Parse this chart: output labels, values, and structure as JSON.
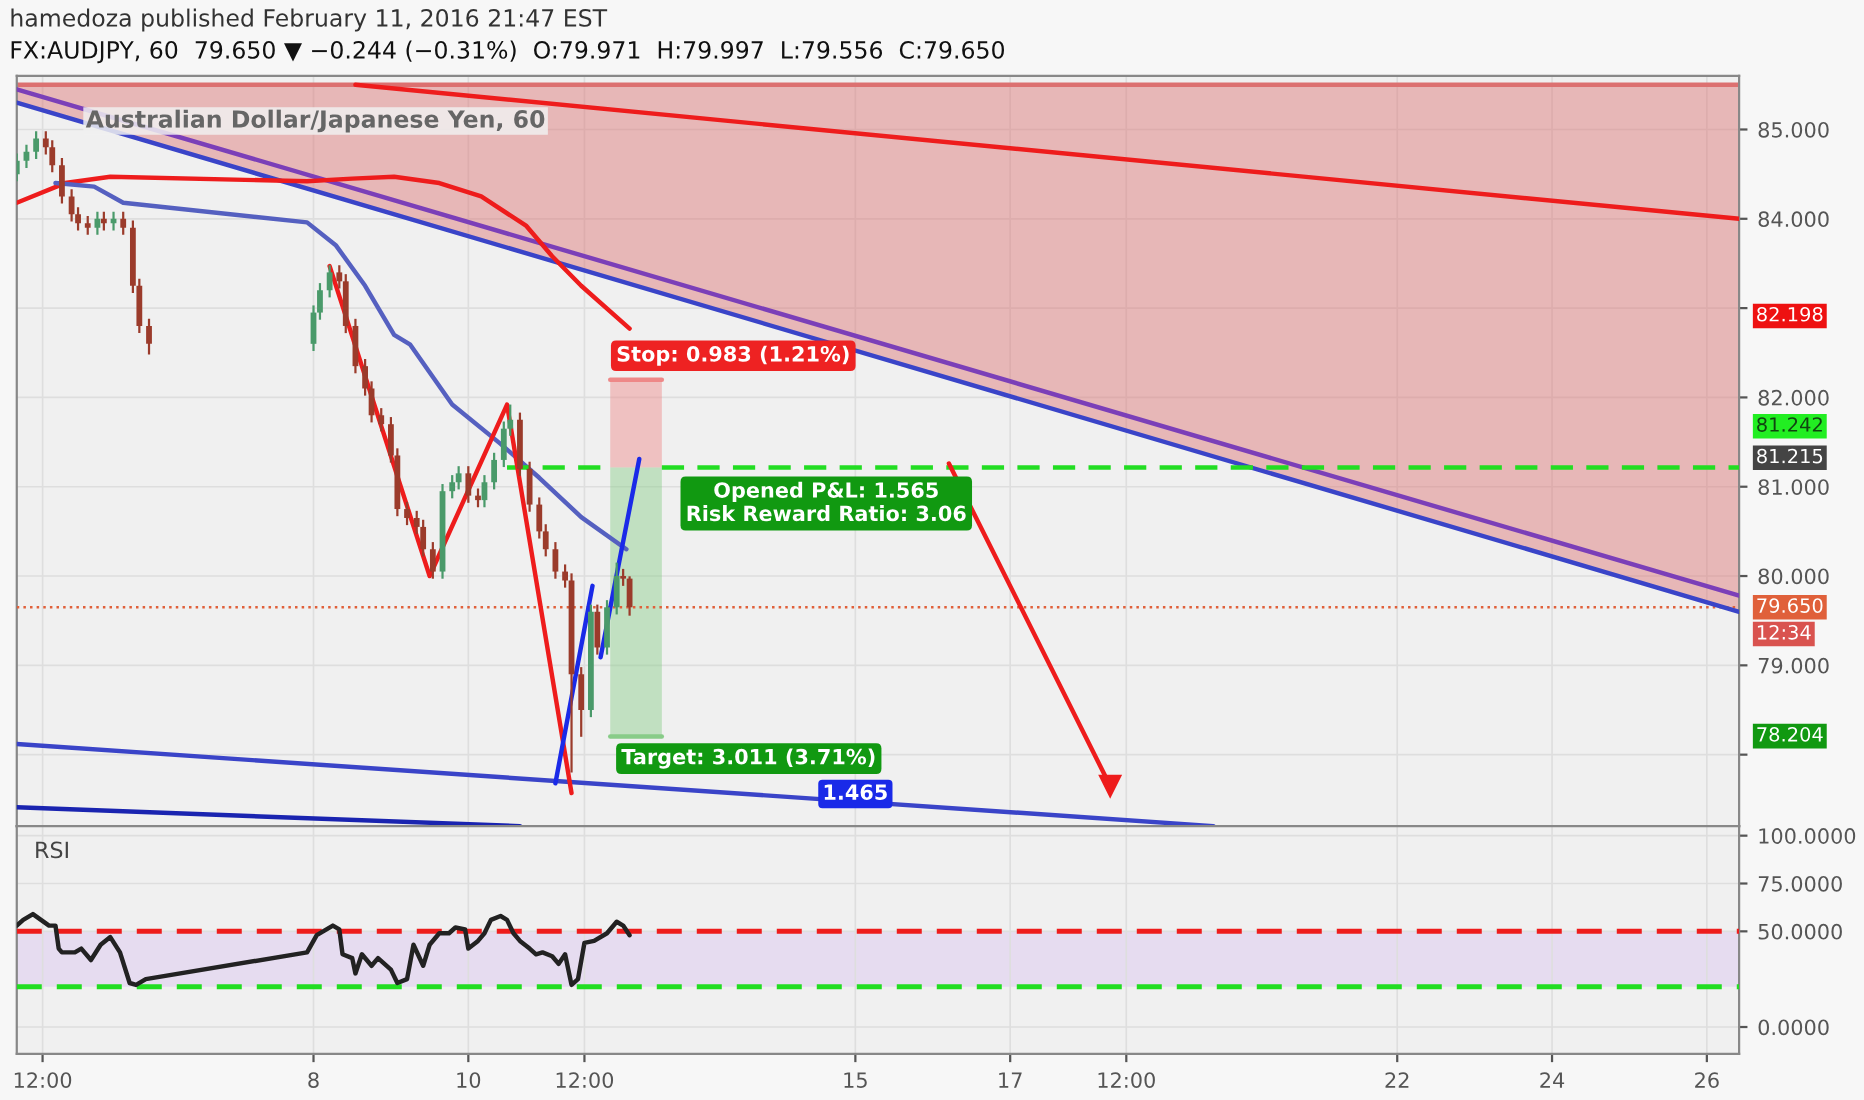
{
  "chart_data": [
    {
      "type": "candlestick",
      "subtitle": "hamedoza published February 11, 2016 21:47 EST",
      "title": "FX:AUDJPY, 60  79.650 ▼ −0.244 (−0.31%)  O:79.971  H:79.997  L:79.556  C:79.650",
      "xlim": [
        "2016-02-04T04:00",
        "2016-02-26T10:00"
      ],
      "ylim": [
        77.2,
        85.6
      ],
      "xticks": [
        {
          "value": "2016-02-04T12:00",
          "label": null
        },
        {
          "value": "2016-02-08",
          "label": null
        },
        {
          "value": "2016-02-10",
          "label": null
        },
        {
          "value": "2016-02-11T12:00",
          "label": null
        },
        {
          "value": "2016-02-15",
          "label": null
        },
        {
          "value": "2016-02-17",
          "label": null
        },
        {
          "value": "2016-02-18T12:00",
          "label": null
        },
        {
          "value": "2016-02-22",
          "label": null
        },
        {
          "value": "2016-02-24",
          "label": null
        },
        {
          "value": "2016-02-26",
          "label": null
        }
      ],
      "yticks": [
        {
          "value": 78,
          "label": null
        },
        {
          "value": 79,
          "label": "79.000"
        },
        {
          "value": 80,
          "label": "80.000"
        },
        {
          "value": 81,
          "label": "81.000"
        },
        {
          "value": 82,
          "label": "82.000"
        },
        {
          "value": 83,
          "label": null
        },
        {
          "value": 84,
          "label": "84.000"
        },
        {
          "value": 85,
          "label": "85.000"
        }
      ],
      "tick_labels": "y",
      "grid": true,
      "series": [
        {
          "type": "line",
          "color": "#dc7070",
          "x": [
            "2016-02-04T04:00",
            "2016-02-26T10:00"
          ],
          "values": [
            85.5,
            85.5
          ],
          "lower": [
            85.3,
            79.6
          ],
          "upper": [
            85.5,
            85.5
          ]
        },
        {
          "type": "line",
          "color": "#ee8888",
          "x": [
            "2016-02-11T20:00",
            "2016-02-12T12:00"
          ],
          "values": [
            82.198,
            82.198
          ],
          "lower": [
            81.215,
            81.215
          ],
          "upper": [
            82.198,
            82.198
          ]
        },
        {
          "type": "line",
          "color": "#88cc88",
          "x": [
            "2016-02-11T20:00",
            "2016-02-12T12:00"
          ],
          "values": [
            78.204,
            78.204
          ],
          "lower": [
            78.204,
            78.204
          ],
          "upper": [
            81.215,
            81.215
          ]
        },
        {
          "type": "line",
          "color": "#7b3fb8",
          "x": [
            "2016-02-04T04:00",
            "2016-02-26T10:00"
          ],
          "values": [
            85.45,
            79.78
          ]
        },
        {
          "type": "line",
          "color": "#3a44c8",
          "x": [
            "2016-02-04T04:00",
            "2016-02-26T10:00"
          ],
          "values": [
            85.3,
            79.6
          ]
        },
        {
          "type": "line",
          "color": "#ee1c1c",
          "x": [
            "2016-02-08T13:00",
            "2016-02-26T10:00"
          ],
          "values": [
            85.5,
            84.0
          ]
        },
        {
          "type": "line",
          "color": "#3a44c8",
          "x": [
            "2016-02-04T04:00",
            "2016-02-19T15:00"
          ],
          "values": [
            78.12,
            77.2
          ]
        },
        {
          "type": "line",
          "color": "#1a24b0",
          "x": [
            "2016-02-04T04:00",
            "2016-02-10T16:00"
          ],
          "values": [
            77.41,
            77.2
          ]
        },
        {
          "type": "line",
          "color": "#ee1c1c",
          "x": [
            "2016-02-04T04:00",
            "2016-02-04T19:00",
            "2016-02-05T09:00",
            "2016-02-07T22:00",
            "2016-02-08T12:00",
            "2016-02-09T01:00",
            "2016-02-09T15:00",
            "2016-02-10T04:00",
            "2016-02-10T18:00",
            "2016-02-11T02:00",
            "2016-02-11T11:00",
            "2016-02-12T02:00"
          ],
          "values": [
            84.18,
            84.4,
            84.47,
            84.42,
            84.45,
            84.47,
            84.4,
            84.25,
            83.92,
            83.58,
            83.25,
            82.77
          ]
        },
        {
          "type": "line",
          "color": "#5560c0",
          "x": [
            "2016-02-04T16:00",
            "2016-02-05T04:00",
            "2016-02-05T13:00",
            "2016-02-07T22:00",
            "2016-02-08T07:00",
            "2016-02-08T16:00",
            "2016-02-09T01:00",
            "2016-02-09T06:00",
            "2016-02-09T19:00",
            "2016-02-10T10:00",
            "2016-02-10T22:00",
            "2016-02-11T11:00",
            "2016-02-12T01:00"
          ],
          "values": [
            84.4,
            84.36,
            84.18,
            83.96,
            83.7,
            83.25,
            82.7,
            82.59,
            81.92,
            81.48,
            81.1,
            80.66,
            80.3
          ]
        },
        {
          "type": "line",
          "color": "#22dd22",
          "line_style": "dashed",
          "x": [
            "2016-02-10T12:00",
            "2016-02-11T20:00",
            "2016-02-12T00:00",
            "2016-02-12T12:00",
            "2016-02-26T10:00"
          ],
          "values": [
            81.215,
            81.215,
            null,
            81.215,
            81.215
          ]
        },
        {
          "type": "candlestick",
          "x": [
            "2016-02-04T04:00",
            "2016-02-04T07:00",
            "2016-02-04T10:00",
            "2016-02-04T13:00",
            "2016-02-04T15:00",
            "2016-02-04T18:00",
            "2016-02-04T21:00",
            "2016-02-04T23:00",
            "2016-02-05T02:00",
            "2016-02-05T05:00",
            "2016-02-05T07:00",
            "2016-02-05T10:00",
            "2016-02-05T13:00",
            "2016-02-05T16:00",
            "2016-02-05T18:00",
            "2016-02-05T21:00",
            "2016-02-08T00:00",
            "2016-02-08T02:00",
            "2016-02-08T05:00",
            "2016-02-08T08:00",
            "2016-02-08T10:00",
            "2016-02-08T13:00",
            "2016-02-08T16:00",
            "2016-02-08T18:00",
            "2016-02-08T21:00",
            "2016-02-09T00:00",
            "2016-02-09T02:00",
            "2016-02-09T05:00",
            "2016-02-09T08:00",
            "2016-02-09T10:00",
            "2016-02-09T13:00",
            "2016-02-09T16:00",
            "2016-02-09T19:00",
            "2016-02-09T21:00",
            "2016-02-10T00:00",
            "2016-02-10T03:00",
            "2016-02-10T05:00",
            "2016-02-10T08:00",
            "2016-02-10T11:00",
            "2016-02-10T13:00",
            "2016-02-10T16:00",
            "2016-02-10T19:00",
            "2016-02-10T22:00",
            "2016-02-11T00:00",
            "2016-02-11T03:00",
            "2016-02-11T06:00",
            "2016-02-11T08:00",
            "2016-02-11T11:00",
            "2016-02-11T14:00",
            "2016-02-11T16:00",
            "2016-02-11T19:00",
            "2016-02-11T22:00",
            "2016-02-12T00:00",
            "2016-02-12T02:00"
          ],
          "ohlc": [
            [
              84.5,
              84.73,
              84.42,
              84.65
            ],
            [
              84.65,
              84.83,
              84.57,
              84.75
            ],
            [
              84.75,
              84.98,
              84.67,
              84.9
            ],
            [
              84.9,
              84.98,
              84.72,
              84.8
            ],
            [
              84.8,
              84.88,
              84.52,
              84.6
            ],
            [
              84.6,
              84.68,
              84.17,
              84.25
            ],
            [
              84.25,
              84.33,
              83.97,
              84.05
            ],
            [
              84.05,
              84.13,
              83.87,
              83.95
            ],
            [
              83.95,
              84.03,
              83.82,
              83.9
            ],
            [
              83.9,
              84.08,
              83.82,
              84.0
            ],
            [
              84.0,
              84.08,
              83.87,
              83.95
            ],
            [
              83.95,
              84.08,
              83.87,
              84.0
            ],
            [
              84.0,
              84.08,
              83.82,
              83.9
            ],
            [
              83.9,
              83.98,
              83.17,
              83.25
            ],
            [
              83.25,
              83.33,
              82.72,
              82.8
            ],
            [
              82.8,
              82.88,
              82.48,
              82.6
            ],
            [
              82.6,
              83.03,
              82.52,
              82.95
            ],
            [
              82.95,
              83.28,
              82.87,
              83.2
            ],
            [
              83.2,
              83.48,
              83.12,
              83.4
            ],
            [
              83.4,
              83.48,
              83.22,
              83.3
            ],
            [
              83.3,
              83.38,
              82.72,
              82.8
            ],
            [
              82.8,
              82.88,
              82.27,
              82.35
            ],
            [
              82.35,
              82.43,
              82.02,
              82.1
            ],
            [
              82.1,
              82.18,
              81.72,
              81.8
            ],
            [
              81.8,
              81.88,
              81.62,
              81.7
            ],
            [
              81.7,
              81.78,
              81.27,
              81.35
            ],
            [
              81.35,
              81.43,
              80.67,
              80.75
            ],
            [
              80.75,
              80.83,
              80.57,
              80.65
            ],
            [
              80.65,
              80.73,
              80.47,
              80.55
            ],
            [
              80.55,
              80.63,
              80.22,
              80.3
            ],
            [
              80.3,
              80.38,
              79.97,
              80.05
            ],
            [
              80.05,
              81.03,
              79.97,
              80.95
            ],
            [
              80.95,
              81.13,
              80.87,
              81.05
            ],
            [
              81.05,
              81.23,
              80.97,
              81.15
            ],
            [
              81.15,
              81.23,
              80.82,
              80.9
            ],
            [
              80.9,
              80.98,
              80.77,
              80.85
            ],
            [
              80.85,
              81.13,
              80.77,
              81.05
            ],
            [
              81.05,
              81.38,
              80.97,
              81.3
            ],
            [
              81.3,
              81.73,
              81.22,
              81.65
            ],
            [
              81.65,
              81.92,
              81.57,
              81.75
            ],
            [
              81.75,
              81.83,
              81.12,
              81.2
            ],
            [
              81.2,
              81.28,
              80.72,
              80.8
            ],
            [
              80.8,
              80.88,
              80.42,
              80.5
            ],
            [
              80.5,
              80.58,
              80.22,
              80.3
            ],
            [
              80.3,
              80.38,
              79.97,
              80.05
            ],
            [
              80.05,
              80.13,
              79.87,
              79.95
            ],
            [
              79.95,
              80.03,
              77.8,
              78.9
            ],
            [
              78.9,
              78.98,
              78.2,
              78.5
            ],
            [
              78.5,
              79.68,
              78.42,
              79.6
            ],
            [
              79.6,
              79.68,
              79.12,
              79.2
            ],
            [
              79.2,
              79.73,
              79.12,
              79.65
            ],
            [
              79.65,
              80.15,
              79.57,
              80.0
            ],
            [
              80.0,
              80.08,
              79.89,
              79.971
            ],
            [
              79.971,
              79.997,
              79.556,
              79.65
            ]
          ],
          "colors": [
            "#4a9a6a",
            "#4a9a6a",
            "#4a9a6a",
            "#9b3b2b",
            "#9b3b2b",
            "#9b3b2b",
            "#9b3b2b",
            "#9b3b2b",
            "#9b3b2b",
            "#4a9a6a",
            "#9b3b2b",
            "#4a9a6a",
            "#9b3b2b",
            "#9b3b2b",
            "#9b3b2b",
            "#9b3b2b",
            "#4a9a6a",
            "#4a9a6a",
            "#4a9a6a",
            "#9b3b2b",
            "#9b3b2b",
            "#9b3b2b",
            "#9b3b2b",
            "#9b3b2b",
            "#9b3b2b",
            "#9b3b2b",
            "#9b3b2b",
            "#9b3b2b",
            "#9b3b2b",
            "#9b3b2b",
            "#9b3b2b",
            "#4a9a6a",
            "#4a9a6a",
            "#4a9a6a",
            "#9b3b2b",
            "#9b3b2b",
            "#4a9a6a",
            "#4a9a6a",
            "#4a9a6a",
            "#4a9a6a",
            "#9b3b2b",
            "#9b3b2b",
            "#9b3b2b",
            "#9b3b2b",
            "#9b3b2b",
            "#9b3b2b",
            "#9b3b2b",
            "#9b3b2b",
            "#4a9a6a",
            "#9b3b2b",
            "#4a9a6a",
            "#4a9a6a",
            "#9b3b2b",
            "#9b3b2b"
          ]
        },
        {
          "type": "line",
          "color": "#ee1c1c",
          "x": [
            "2016-02-08T05:00",
            "2016-02-09T12:00",
            "2016-02-10T12:00",
            "2016-02-11T08:00"
          ],
          "values": [
            83.47,
            80.0,
            81.92,
            77.57
          ]
        },
        {
          "type": "line",
          "color": "#1a2ae8",
          "x": [
            "2016-02-11T03:00",
            "2016-02-11T14:30"
          ],
          "values": [
            77.68,
            79.89
          ]
        },
        {
          "type": "line",
          "color": "#1a2ae8",
          "x": [
            "2016-02-11T17:00",
            "2016-02-12T05:00"
          ],
          "values": [
            79.09,
            81.31
          ]
        },
        {
          "type": "line",
          "color": "#ee1c1c",
          "marker": "triangle",
          "x": [
            "2016-02-16T05:00",
            "2016-02-18T07:00"
          ],
          "values": [
            81.26,
            77.65
          ]
        }
      ],
      "ref_lines": [
        {
          "axis": "y",
          "value": 79.65,
          "label": "79.650",
          "color": "#e0603a",
          "line_style": "dotted"
        }
      ],
      "annotations": [
        "Australian Dollar/Japanese Yen, 60",
        "Stop: 0.983 (1.21%)",
        "Opened P&L: 1.565\nRisk Reward Ratio: 3.06",
        "Target: 3.011 (3.71%)",
        "82.198",
        "81.242",
        "81.215",
        "12:34",
        "78.204",
        {
          "text": "1.465",
          "x": "2016-02-15T00:00",
          "y": 77.56
        }
      ]
    },
    {
      "type": "line",
      "title": "RSI",
      "xlim": [
        "2016-02-04T04:00",
        "2016-02-26T10:00"
      ],
      "ylim": [
        -14,
        105
      ],
      "xticks": [
        {
          "value": "2016-02-04T12:00",
          "label": "12:00"
        },
        {
          "value": "2016-02-08",
          "label": "8"
        },
        {
          "value": "2016-02-10",
          "label": "10"
        },
        {
          "value": "2016-02-11T12:00",
          "label": "12:00"
        },
        {
          "value": "2016-02-15",
          "label": "15"
        },
        {
          "value": "2016-02-17",
          "label": "17"
        },
        {
          "value": "2016-02-18T12:00",
          "label": "12:00"
        },
        {
          "value": "2016-02-22",
          "label": "22"
        },
        {
          "value": "2016-02-24",
          "label": "24"
        },
        {
          "value": "2016-02-26",
          "label": "26"
        }
      ],
      "yticks": [
        {
          "value": 0,
          "label": "0.0000"
        },
        {
          "value": 50,
          "label": "50.0000"
        },
        {
          "value": 75,
          "label": "75.0000"
        },
        {
          "value": 100,
          "label": "100.0000"
        }
      ],
      "grid": true,
      "bands": [
        {
          "axis": "y",
          "from": 21,
          "to": 50,
          "color": "#e6dcf0"
        }
      ],
      "ref_lines": [
        {
          "axis": "y",
          "value": 50,
          "color": "#ee1c1c",
          "line_style": "dashed"
        },
        {
          "axis": "y",
          "value": 21,
          "color": "#22dd22",
          "line_style": "dashed"
        }
      ],
      "series": [
        {
          "color": "#222222",
          "x": [
            "2016-02-04T04:00",
            "2016-02-04T06:00",
            "2016-02-04T09:00",
            "2016-02-04T14:00",
            "2016-02-04T16:00",
            "2016-02-04T17:00",
            "2016-02-04T18:00",
            "2016-02-04T22:00",
            "2016-02-05T00:00",
            "2016-02-05T03:00",
            "2016-02-05T06:00",
            "2016-02-05T09:00",
            "2016-02-05T12:00",
            "2016-02-05T15:00",
            "2016-02-05T17:00",
            "2016-02-05T20:00",
            "2016-02-07T22:00",
            "2016-02-08T01:00",
            "2016-02-08T06:00",
            "2016-02-08T08:00",
            "2016-02-08T09:00",
            "2016-02-08T12:00",
            "2016-02-08T13:00",
            "2016-02-08T15:00",
            "2016-02-08T18:00",
            "2016-02-08T20:00",
            "2016-02-09T00:00",
            "2016-02-09T02:00",
            "2016-02-09T05:00",
            "2016-02-09T07:00",
            "2016-02-09T10:00",
            "2016-02-09T12:00",
            "2016-02-09T15:00",
            "2016-02-09T18:00",
            "2016-02-09T20:00",
            "2016-02-09T23:00",
            "2016-02-10T00:00",
            "2016-02-10T03:00",
            "2016-02-10T05:00",
            "2016-02-10T07:00",
            "2016-02-10T10:00",
            "2016-02-10T12:00",
            "2016-02-10T14:00",
            "2016-02-10T16:00",
            "2016-02-10T19:00",
            "2016-02-10T21:00",
            "2016-02-10T23:00",
            "2016-02-11T02:00",
            "2016-02-11T04:00",
            "2016-02-11T06:00",
            "2016-02-11T08:00",
            "2016-02-11T10:00",
            "2016-02-11T12:00",
            "2016-02-11T15:00",
            "2016-02-11T19:00",
            "2016-02-11T22:00",
            "2016-02-12T00:00",
            "2016-02-12T02:00"
          ],
          "values": [
            53,
            56,
            59,
            53,
            53,
            41,
            39,
            39,
            41,
            35,
            43,
            47,
            39,
            23,
            22,
            25,
            39,
            48,
            53,
            51,
            38,
            36,
            28,
            38,
            32,
            36,
            30,
            23,
            25,
            43,
            32,
            43,
            49,
            49,
            52,
            51,
            41,
            45,
            49,
            56,
            58,
            56,
            49,
            45,
            41,
            38,
            39,
            37,
            33,
            38,
            22,
            25,
            44,
            45,
            49,
            55,
            53,
            48
          ]
        }
      ]
    }
  ]
}
